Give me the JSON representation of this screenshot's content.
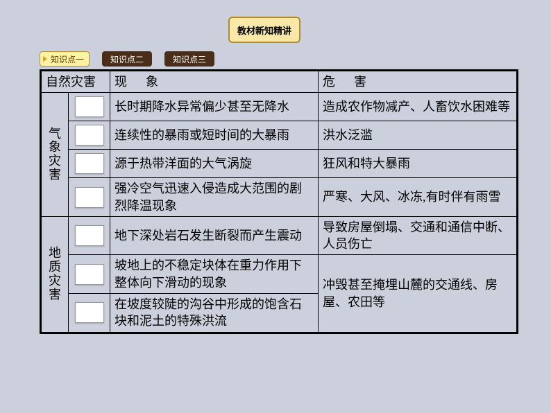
{
  "top_button": "教材新知精讲",
  "tabs": {
    "active": "知识点一",
    "t2": "知识点二",
    "t3": "知识点三"
  },
  "headers": {
    "h1": "自然灾害",
    "h2": "现      象",
    "h3": "危      害"
  },
  "categories": {
    "cat1": "气象灾害",
    "cat2": "地质灾害"
  },
  "rows": {
    "r1": {
      "phenom": "长时期降水异常偏少甚至无降水",
      "harm": "造成农作物减产、人畜饮水困难等"
    },
    "r2": {
      "phenom": "连续性的暴雨或短时间的大暴雨",
      "harm": "洪水泛滥"
    },
    "r3": {
      "phenom": "源于热带洋面的大气涡旋",
      "harm": "狂风和特大暴雨"
    },
    "r4": {
      "phenom": "强冷空气迅速入侵造成大范围的剧烈降温现象",
      "harm": "严寒、大风、冰冻,有时伴有雨雪"
    },
    "r5": {
      "phenom": "地下深处岩石发生断裂而产生震动",
      "harm": "导致房屋倒塌、交通和通信中断、人员伤亡"
    },
    "r6": {
      "phenom": "坡地上的不稳定块体在重力作用下整体向下滑动的现象",
      "harm": "冲毁甚至掩埋山麓的交通线、房屋、农田等"
    },
    "r7": {
      "phenom": "在坡度较陡的沟谷中形成的饱含石块和泥土的特殊洪流"
    }
  },
  "colors": {
    "page_bg": "#cccfdc",
    "button_bg": "#f9e8a8",
    "button_border": "#b08c2e",
    "tab_active_bg": "#fff3a3",
    "tab_inactive_bg": "#4a2e1a",
    "table_border": "#000000"
  }
}
